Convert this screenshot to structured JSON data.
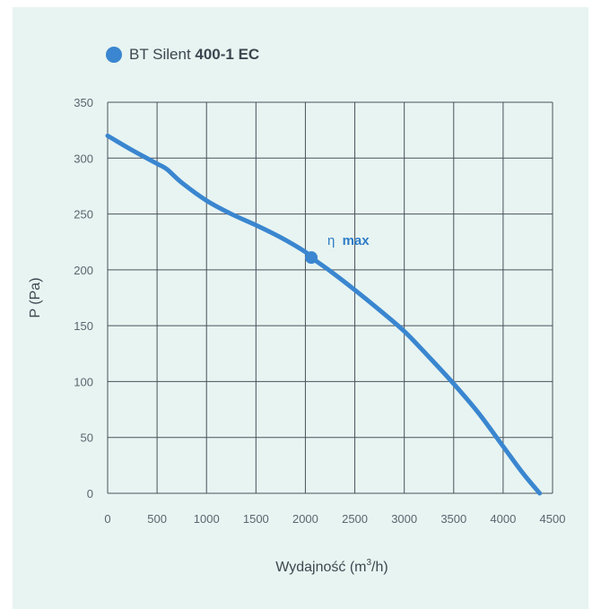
{
  "legend": {
    "label_regular": "BT Silent ",
    "label_bold": "400-1 EC"
  },
  "colors": {
    "series": "#3a86d0",
    "grid": "#4a525c",
    "background": "#e7f4f1"
  },
  "chart_data": {
    "type": "line",
    "xlabel_pre": "Wydajność (m",
    "xlabel_sup": "3",
    "xlabel_post": "/h)",
    "ylabel": "P (Pa)",
    "xlim": [
      0,
      4500
    ],
    "ylim": [
      0,
      350
    ],
    "x_ticks": [
      0,
      500,
      1000,
      1500,
      2000,
      2500,
      3000,
      3500,
      4000,
      4500
    ],
    "y_ticks": [
      0,
      50,
      100,
      150,
      200,
      250,
      300,
      350
    ],
    "grid": true,
    "legend_position": "top-left",
    "series": [
      {
        "name": "BT Silent 400-1 EC",
        "points": [
          [
            0,
            320
          ],
          [
            250,
            307
          ],
          [
            500,
            295
          ],
          [
            600,
            290
          ],
          [
            750,
            278
          ],
          [
            1000,
            262
          ],
          [
            1250,
            250
          ],
          [
            1500,
            240
          ],
          [
            1750,
            229
          ],
          [
            2000,
            216
          ],
          [
            2060,
            211
          ],
          [
            2250,
            199
          ],
          [
            2500,
            182
          ],
          [
            2750,
            164
          ],
          [
            3000,
            145
          ],
          [
            3250,
            122
          ],
          [
            3500,
            98
          ],
          [
            3750,
            72
          ],
          [
            4000,
            42
          ],
          [
            4200,
            18
          ],
          [
            4370,
            0
          ]
        ]
      }
    ],
    "annotation": {
      "symbol": "η",
      "text": "max",
      "x": 2060,
      "y": 211
    }
  }
}
